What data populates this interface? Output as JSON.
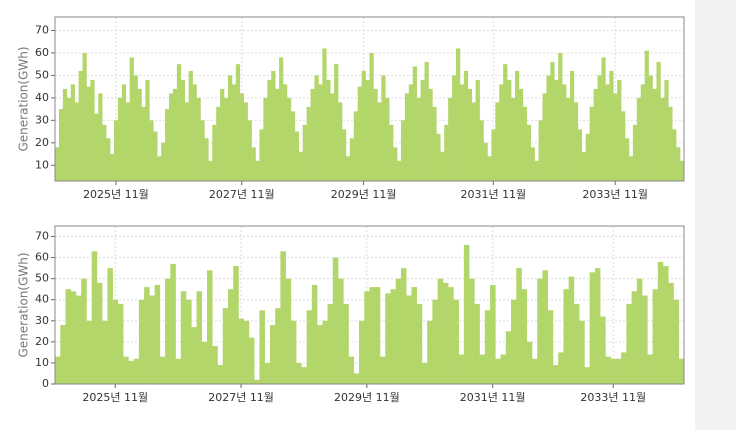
{
  "chart_data": [
    {
      "type": "bar",
      "y_label": "Generation(GWh)",
      "color": "#b3d66b",
      "grid": true,
      "ylim": [
        3,
        76
      ],
      "yticks": [
        10,
        20,
        30,
        40,
        50,
        60,
        70
      ],
      "categories": [
        null,
        null,
        null,
        null,
        null,
        null,
        null,
        null,
        null,
        null,
        null,
        null,
        null,
        null,
        null,
        "2025년 11월",
        null,
        null,
        null,
        null,
        null,
        null,
        null,
        null,
        null,
        null,
        null,
        null,
        null,
        null,
        null,
        null,
        null,
        null,
        null,
        null,
        null,
        null,
        null,
        null,
        null,
        null,
        null,
        null,
        null,
        null,
        null,
        "2027년 11월",
        null,
        null,
        null,
        null,
        null,
        null,
        null,
        null,
        null,
        null,
        null,
        null,
        null,
        null,
        null,
        null,
        null,
        null,
        null,
        null,
        null,
        null,
        null,
        null,
        null,
        null,
        null,
        null,
        null,
        null,
        "2029년 11월",
        null,
        null,
        null,
        null,
        null,
        null,
        null,
        null,
        null,
        null,
        null,
        null,
        null,
        null,
        null,
        null,
        null,
        null,
        null,
        null,
        null,
        null,
        null,
        null,
        null,
        null,
        null,
        null,
        null,
        null,
        null,
        null,
        "2031년 11월",
        null,
        null,
        null,
        null,
        null,
        null,
        null,
        null,
        null,
        null,
        null,
        null,
        null,
        null,
        null,
        null,
        null,
        null,
        null,
        null,
        null,
        null,
        null,
        null,
        null,
        null,
        null,
        null,
        null,
        null,
        "2033년 11월",
        null,
        null,
        null,
        null,
        null,
        null,
        null,
        null,
        null,
        null,
        null,
        null,
        null,
        null,
        null,
        null,
        null
      ],
      "values": [
        18,
        35,
        44,
        40,
        46,
        38,
        52,
        60,
        45,
        48,
        33,
        42,
        28,
        22,
        15,
        30,
        40,
        46,
        38,
        58,
        50,
        44,
        36,
        48,
        30,
        25,
        14,
        20,
        35,
        42,
        44,
        55,
        48,
        38,
        52,
        46,
        40,
        30,
        22,
        12,
        28,
        36,
        44,
        40,
        50,
        46,
        55,
        42,
        38,
        30,
        18,
        12,
        26,
        40,
        48,
        52,
        44,
        58,
        46,
        40,
        34,
        25,
        16,
        28,
        36,
        44,
        50,
        46,
        62,
        48,
        42,
        55,
        38,
        26,
        14,
        22,
        34,
        45,
        52,
        48,
        60,
        44,
        38,
        50,
        40,
        28,
        18,
        12,
        30,
        42,
        46,
        54,
        40,
        48,
        56,
        44,
        36,
        24,
        16,
        28,
        40,
        50,
        62,
        46,
        52,
        44,
        38,
        48,
        30,
        20,
        14,
        26,
        38,
        46,
        55,
        48,
        40,
        52,
        44,
        36,
        28,
        18,
        12,
        30,
        42,
        50,
        56,
        48,
        60,
        46,
        40,
        52,
        38,
        26,
        16,
        24,
        36,
        44,
        50,
        58,
        46,
        52,
        42,
        48,
        34,
        22,
        14,
        28,
        40,
        46,
        61,
        50,
        44,
        56,
        40,
        48,
        36,
        26,
        18,
        12
      ]
    },
    {
      "type": "bar",
      "y_label": "Generation(GWh)",
      "color": "#b3d66b",
      "grid": true,
      "ylim": [
        0,
        75
      ],
      "yticks": [
        0,
        10,
        20,
        30,
        40,
        50,
        60,
        70
      ],
      "categories": [
        null,
        null,
        null,
        null,
        null,
        null,
        null,
        null,
        null,
        null,
        null,
        "2025년 11월",
        null,
        null,
        null,
        null,
        null,
        null,
        null,
        null,
        null,
        null,
        null,
        null,
        null,
        null,
        null,
        null,
        null,
        null,
        null,
        null,
        null,
        null,
        null,
        "2027년 11월",
        null,
        null,
        null,
        null,
        null,
        null,
        null,
        null,
        null,
        null,
        null,
        null,
        null,
        null,
        null,
        null,
        null,
        null,
        null,
        null,
        null,
        null,
        null,
        "2029년 11월",
        null,
        null,
        null,
        null,
        null,
        null,
        null,
        null,
        null,
        null,
        null,
        null,
        null,
        null,
        null,
        null,
        null,
        null,
        null,
        null,
        null,
        null,
        null,
        "2031년 11월",
        null,
        null,
        null,
        null,
        null,
        null,
        null,
        null,
        null,
        null,
        null,
        null,
        null,
        null,
        null,
        null,
        null,
        null,
        null,
        null,
        null,
        null,
        "2033년 11월",
        null,
        null,
        null,
        null,
        null,
        null,
        null,
        null,
        null,
        null,
        null,
        null,
        null
      ],
      "values": [
        13,
        28,
        45,
        44,
        42,
        50,
        30,
        63,
        48,
        30,
        55,
        40,
        38,
        13,
        11,
        12,
        40,
        46,
        42,
        47,
        13,
        50,
        57,
        12,
        44,
        40,
        27,
        44,
        20,
        54,
        18,
        9,
        36,
        45,
        56,
        31,
        30,
        22,
        2,
        35,
        10,
        28,
        36,
        63,
        50,
        30,
        10,
        8,
        35,
        47,
        28,
        30,
        38,
        60,
        50,
        38,
        13,
        5,
        30,
        44,
        46,
        46,
        13,
        43,
        45,
        50,
        55,
        42,
        46,
        38,
        10,
        30,
        40,
        50,
        48,
        46,
        40,
        14,
        66,
        50,
        38,
        14,
        35,
        47,
        12,
        14,
        25,
        40,
        55,
        45,
        20,
        12,
        50,
        54,
        35,
        9,
        15,
        45,
        51,
        38,
        30,
        8,
        53,
        55,
        32,
        13,
        12,
        12,
        15,
        38,
        44,
        50,
        42,
        14,
        45,
        58,
        56,
        48,
        40,
        12
      ]
    }
  ]
}
